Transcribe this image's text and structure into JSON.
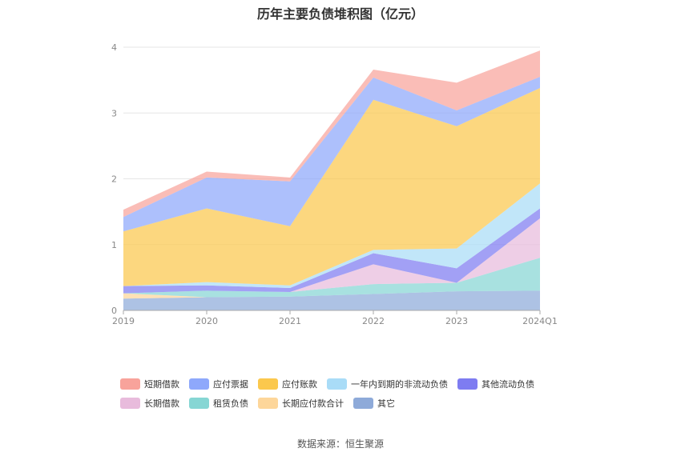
{
  "chart_data": {
    "type": "area",
    "stacked": true,
    "title": "历年主要负债堆积图（亿元）",
    "categories": [
      "2019",
      "2020",
      "2021",
      "2022",
      "2023",
      "2024Q1"
    ],
    "ylim": [
      0,
      4
    ],
    "yticks": [
      "0",
      "1",
      "2",
      "3",
      "4"
    ],
    "grid": true,
    "legend_position": "bottom",
    "series": [
      {
        "name": "其它",
        "color": "#8eaad9",
        "values": [
          0.18,
          0.2,
          0.21,
          0.25,
          0.29,
          0.3
        ]
      },
      {
        "name": "长期应付款合计",
        "color": "#fdd69a",
        "values": [
          0.08,
          0.0,
          0.0,
          0.0,
          0.0,
          0.0
        ]
      },
      {
        "name": "租赁负债",
        "color": "#86d6d4",
        "values": [
          0.0,
          0.1,
          0.07,
          0.15,
          0.13,
          0.5
        ]
      },
      {
        "name": "长期借款",
        "color": "#e8bbdc",
        "values": [
          0.0,
          0.0,
          0.0,
          0.3,
          0.0,
          0.6
        ]
      },
      {
        "name": "其他流动负债",
        "color": "#7e7cf1",
        "values": [
          0.11,
          0.08,
          0.06,
          0.17,
          0.22,
          0.15
        ]
      },
      {
        "name": "一年内到期的非流动负债",
        "color": "#a9dcf7",
        "values": [
          0.0,
          0.05,
          0.04,
          0.05,
          0.3,
          0.38
        ]
      },
      {
        "name": "应付账款",
        "color": "#fbc84d",
        "values": [
          0.83,
          1.12,
          0.9,
          2.28,
          1.86,
          1.45
        ]
      },
      {
        "name": "应付票据",
        "color": "#8ea8fb",
        "values": [
          0.22,
          0.47,
          0.68,
          0.34,
          0.24,
          0.17
        ]
      },
      {
        "name": "短期借款",
        "color": "#f8a39b",
        "values": [
          0.11,
          0.09,
          0.06,
          0.12,
          0.42,
          0.4
        ]
      }
    ]
  },
  "legend_rows": [
    [
      "短期借款",
      "应付票据",
      "应付账款",
      "一年内到期的非流动负债",
      "其他流动负债"
    ],
    [
      "长期借款",
      "租赁负债",
      "长期应付款合计",
      "其它"
    ]
  ],
  "source": "数据来源：恒生聚源"
}
